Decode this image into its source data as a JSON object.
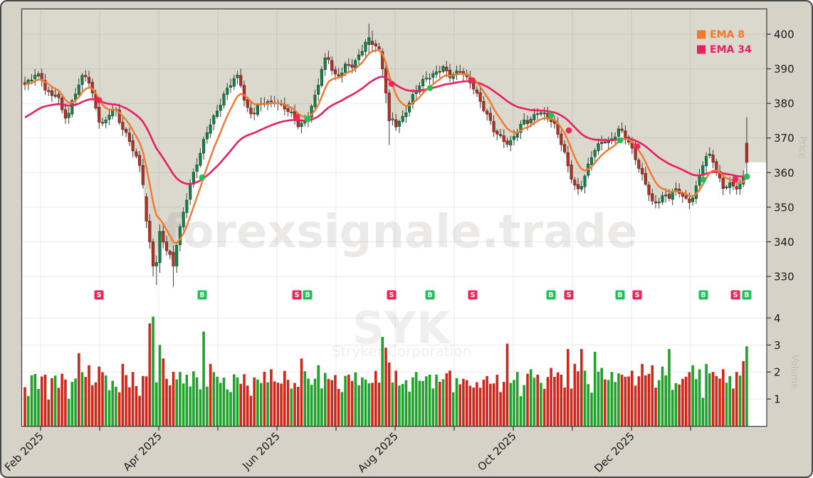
{
  "window": {
    "background": "#d6d2c7",
    "border_color": "#474747"
  },
  "watermarks": {
    "site": "forexsignale.trade",
    "symbol": "SYK",
    "company": "Stryker Corporation"
  },
  "legend": [
    {
      "label": "EMA 8",
      "color": "#f4772e"
    },
    {
      "label": "EMA 34",
      "color": "#e82062"
    }
  ],
  "axis_labels": {
    "price": "Price",
    "volume": "Volume"
  },
  "chart_data": {
    "type": "candlestick",
    "symbol": "SYK",
    "company": "Stryker Corporation",
    "n_candles": 215,
    "price_axis": {
      "ticks": [
        400,
        390,
        380,
        370,
        360,
        350,
        340,
        330
      ],
      "range": [
        325,
        407
      ]
    },
    "volume_axis": {
      "ticks": [
        4,
        3,
        2,
        1
      ],
      "range": [
        0,
        4.4
      ]
    },
    "x_ticks": [
      {
        "x": 55,
        "label": "Feb 2025"
      },
      {
        "x": 138,
        "label": ""
      },
      {
        "x": 221,
        "label": "Apr 2025"
      },
      {
        "x": 304,
        "label": ""
      },
      {
        "x": 387,
        "label": "Jun 2025"
      },
      {
        "x": 470,
        "label": ""
      },
      {
        "x": 553,
        "label": "Aug 2025"
      },
      {
        "x": 636,
        "label": ""
      },
      {
        "x": 719,
        "label": "Oct 2025"
      },
      {
        "x": 802,
        "label": ""
      },
      {
        "x": 885,
        "label": "Dec 2025"
      },
      {
        "x": 968,
        "label": ""
      }
    ],
    "ema_periods": [
      8,
      34
    ],
    "price_anchors": [
      [
        33,
        385
      ],
      [
        40,
        386.5
      ],
      [
        48,
        389
      ],
      [
        55,
        388
      ],
      [
        62,
        384
      ],
      [
        70,
        381.5
      ],
      [
        78,
        383
      ],
      [
        85,
        378
      ],
      [
        92,
        376
      ],
      [
        100,
        381
      ],
      [
        108,
        385
      ],
      [
        116,
        388
      ],
      [
        124,
        386
      ],
      [
        131,
        380
      ],
      [
        138,
        375
      ],
      [
        145,
        374
      ],
      [
        152,
        377
      ],
      [
        160,
        378
      ],
      [
        167,
        374
      ],
      [
        174,
        372
      ],
      [
        181,
        369
      ],
      [
        188,
        365
      ],
      [
        195,
        361
      ],
      [
        202,
        353
      ],
      [
        208,
        347
      ],
      [
        213,
        340
      ],
      [
        217,
        334
      ],
      [
        222,
        343
      ],
      [
        228,
        340
      ],
      [
        233,
        337
      ],
      [
        240,
        334
      ],
      [
        246,
        339
      ],
      [
        252,
        345
      ],
      [
        258,
        351
      ],
      [
        265,
        357
      ],
      [
        272,
        361
      ],
      [
        279,
        365
      ],
      [
        286,
        370
      ],
      [
        293,
        374
      ],
      [
        300,
        377
      ],
      [
        307,
        380
      ],
      [
        314,
        383
      ],
      [
        321,
        385
      ],
      [
        328,
        387
      ],
      [
        334,
        388
      ],
      [
        340,
        382
      ],
      [
        347,
        378
      ],
      [
        354,
        377
      ],
      [
        361,
        379
      ],
      [
        368,
        380
      ],
      [
        376,
        380
      ],
      [
        383,
        381
      ],
      [
        390,
        380
      ],
      [
        397,
        379
      ],
      [
        404,
        377
      ],
      [
        411,
        376
      ],
      [
        418,
        373
      ],
      [
        425,
        375
      ],
      [
        432,
        377
      ],
      [
        439,
        381
      ],
      [
        446,
        386
      ],
      [
        452,
        391
      ],
      [
        458,
        394
      ],
      [
        464,
        390
      ],
      [
        470,
        388
      ],
      [
        477,
        389
      ],
      [
        484,
        391
      ],
      [
        491,
        390
      ],
      [
        498,
        392
      ],
      [
        505,
        395
      ],
      [
        511,
        398
      ],
      [
        517,
        399
      ],
      [
        523,
        397
      ],
      [
        529,
        396
      ],
      [
        535,
        391
      ],
      [
        541,
        384
      ],
      [
        547,
        377
      ],
      [
        553,
        374
      ],
      [
        560,
        375
      ],
      [
        567,
        377
      ],
      [
        574,
        380
      ],
      [
        581,
        383
      ],
      [
        589,
        386
      ],
      [
        597,
        388
      ],
      [
        605,
        388
      ],
      [
        613,
        389
      ],
      [
        621,
        390
      ],
      [
        629,
        388
      ],
      [
        637,
        389
      ],
      [
        645,
        390
      ],
      [
        653,
        387
      ],
      [
        661,
        385
      ],
      [
        669,
        382
      ],
      [
        677,
        379
      ],
      [
        685,
        376
      ],
      [
        692,
        372
      ],
      [
        699,
        370
      ],
      [
        706,
        369
      ],
      [
        713,
        368
      ],
      [
        720,
        371
      ],
      [
        727,
        373
      ],
      [
        734,
        375
      ],
      [
        741,
        374
      ],
      [
        748,
        376
      ],
      [
        755,
        378
      ],
      [
        762,
        377
      ],
      [
        769,
        376
      ],
      [
        776,
        374
      ],
      [
        783,
        370
      ],
      [
        790,
        366
      ],
      [
        797,
        361
      ],
      [
        804,
        357
      ],
      [
        811,
        355
      ],
      [
        818,
        358
      ],
      [
        825,
        362
      ],
      [
        832,
        366
      ],
      [
        839,
        368
      ],
      [
        846,
        370
      ],
      [
        853,
        369
      ],
      [
        860,
        370
      ],
      [
        867,
        372
      ],
      [
        874,
        371
      ],
      [
        881,
        369
      ],
      [
        888,
        366
      ],
      [
        895,
        362
      ],
      [
        902,
        358
      ],
      [
        909,
        354
      ],
      [
        916,
        350
      ],
      [
        923,
        352
      ],
      [
        930,
        354
      ],
      [
        937,
        353
      ],
      [
        944,
        355
      ],
      [
        951,
        354
      ],
      [
        958,
        353
      ],
      [
        965,
        351
      ],
      [
        972,
        354
      ],
      [
        979,
        358
      ],
      [
        986,
        363
      ],
      [
        993,
        365
      ],
      [
        1000,
        363
      ],
      [
        1007,
        359
      ],
      [
        1014,
        356
      ],
      [
        1021,
        357
      ],
      [
        1028,
        356
      ],
      [
        1035,
        355
      ],
      [
        1041,
        357
      ],
      [
        1047,
        363
      ]
    ],
    "candle_overrides": [
      [
        203,
        353,
        354,
        344,
        346
      ],
      [
        208,
        346,
        348,
        338,
        340
      ],
      [
        212,
        340,
        341,
        330,
        333
      ],
      [
        217,
        333,
        336,
        327.5,
        334
      ],
      [
        221,
        334,
        345,
        331,
        343
      ],
      [
        240,
        337,
        339,
        327,
        333
      ],
      [
        245,
        333,
        340,
        331,
        339
      ],
      [
        514,
        397,
        403,
        394,
        399
      ],
      [
        523,
        398,
        401,
        395,
        397
      ],
      [
        535,
        395,
        396,
        388,
        390
      ],
      [
        540,
        390,
        391,
        380,
        383
      ],
      [
        546,
        383,
        384,
        368,
        375
      ],
      [
        1047,
        368.5,
        376,
        359,
        363
      ]
    ],
    "signals": [
      [
        137,
        "S"
      ],
      [
        282,
        "B"
      ],
      [
        415,
        "S"
      ],
      [
        430,
        "B"
      ],
      [
        548,
        "S"
      ],
      [
        602,
        "B"
      ],
      [
        662,
        "S"
      ],
      [
        772,
        "B"
      ],
      [
        797,
        "S"
      ],
      [
        869,
        "B"
      ],
      [
        893,
        "S"
      ],
      [
        986,
        "B"
      ],
      [
        1031,
        "S"
      ],
      [
        1047,
        "B"
      ]
    ],
    "volume_spikes": [
      [
        60,
        1.9,
        ""
      ],
      [
        110,
        2.7,
        "r"
      ],
      [
        124,
        2.25,
        ""
      ],
      [
        137,
        2.2,
        ""
      ],
      [
        170,
        2.3,
        "r"
      ],
      [
        186,
        2.0,
        ""
      ],
      [
        210,
        3.8,
        "r"
      ],
      [
        214,
        4.05,
        "g"
      ],
      [
        221,
        3.0,
        "g"
      ],
      [
        227,
        2.5,
        "r"
      ],
      [
        250,
        2.0,
        ""
      ],
      [
        262,
        1.9,
        ""
      ],
      [
        285,
        3.5,
        "g"
      ],
      [
        295,
        2.3,
        "r"
      ],
      [
        306,
        1.6,
        ""
      ],
      [
        380,
        2.1,
        ""
      ],
      [
        420,
        2.5,
        "r"
      ],
      [
        444,
        2.25,
        ""
      ],
      [
        465,
        1.7,
        ""
      ],
      [
        490,
        1.9,
        ""
      ],
      [
        505,
        1.8,
        ""
      ],
      [
        520,
        1.6,
        ""
      ],
      [
        533,
        3.3,
        "g"
      ],
      [
        538,
        2.9,
        "r"
      ],
      [
        546,
        2.35,
        "r"
      ],
      [
        560,
        1.5,
        ""
      ],
      [
        580,
        1.8,
        ""
      ],
      [
        600,
        1.9,
        ""
      ],
      [
        628,
        2.05,
        ""
      ],
      [
        655,
        1.7,
        ""
      ],
      [
        680,
        1.85,
        ""
      ],
      [
        697,
        1.9,
        ""
      ],
      [
        710,
        3.05,
        "r"
      ],
      [
        727,
        2.0,
        ""
      ],
      [
        742,
        2.1,
        ""
      ],
      [
        760,
        1.6,
        ""
      ],
      [
        772,
        2.15,
        ""
      ],
      [
        785,
        1.9,
        ""
      ],
      [
        796,
        2.85,
        "r"
      ],
      [
        805,
        2.3,
        ""
      ],
      [
        813,
        2.85,
        "r"
      ],
      [
        820,
        2.05,
        ""
      ],
      [
        833,
        2.75,
        "g"
      ],
      [
        845,
        2.15,
        ""
      ],
      [
        858,
        2.0,
        ""
      ],
      [
        873,
        1.9,
        ""
      ],
      [
        885,
        2.05,
        ""
      ],
      [
        900,
        2.3,
        ""
      ],
      [
        915,
        2.25,
        "r"
      ],
      [
        928,
        2.2,
        "g"
      ],
      [
        940,
        2.85,
        "g"
      ],
      [
        955,
        1.75,
        ""
      ],
      [
        970,
        2.25,
        ""
      ],
      [
        980,
        2.1,
        ""
      ],
      [
        992,
        2.3,
        ""
      ],
      [
        1000,
        2.0,
        ""
      ],
      [
        1012,
        2.1,
        "r"
      ],
      [
        1022,
        1.85,
        ""
      ],
      [
        1032,
        2.0,
        ""
      ],
      [
        1040,
        2.4,
        "r"
      ],
      [
        1047,
        2.95,
        "g"
      ]
    ],
    "colors": {
      "candle_up": "#1e8048",
      "candle_up_border": "#0f5c30",
      "candle_down": "#ad352a",
      "candle_down_border": "#7c241c",
      "wick": "#3c3c3c",
      "volume_up": "#1fa32a",
      "volume_down": "#d2261b",
      "ema8": "#f4772e",
      "ema34": "#e82062",
      "signal_buy": "#1dc355",
      "signal_sell": "#f22559",
      "fill_above": "#dbd8ce",
      "plot_background": "#ffffff",
      "grid": "rgba(0,0,0,0.08)",
      "axis_text": "#1a1a1a"
    }
  }
}
